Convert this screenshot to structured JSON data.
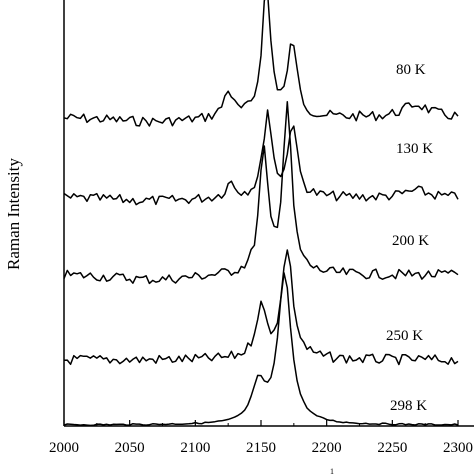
{
  "chart_data": {
    "type": "line",
    "title": "",
    "xlabel": "",
    "ylabel": "Raman Intensity",
    "xlim": [
      2000,
      2300
    ],
    "x_ticks": [
      2000,
      2050,
      2100,
      2150,
      2200,
      2250,
      2300
    ],
    "x_tick_labels": [
      "2000",
      "2050",
      "2100",
      "2150",
      "2200",
      "2250",
      "2300"
    ],
    "partial_axis_text": "1",
    "grid": false,
    "legend": "none",
    "y_units": "arbitrary, vertically offset traces",
    "series": [
      {
        "label": "80 K",
        "baseline": 0.0,
        "peaks": [
          {
            "center": 2125,
            "height": 0.2,
            "width": 4
          },
          {
            "center": 2154,
            "height": 0.95,
            "width": 4
          },
          {
            "center": 2174,
            "height": 0.55,
            "width": 4
          },
          {
            "center": 2268,
            "height": 0.1,
            "width": 12
          }
        ]
      },
      {
        "label": "130 K",
        "baseline": 0.0,
        "peaks": [
          {
            "center": 2127,
            "height": 0.15,
            "width": 4
          },
          {
            "center": 2155,
            "height": 0.85,
            "width": 4
          },
          {
            "center": 2174,
            "height": 0.75,
            "width": 4
          },
          {
            "center": 2268,
            "height": 0.07,
            "width": 12
          }
        ]
      },
      {
        "label": "200 K",
        "baseline": 0.0,
        "peaks": [
          {
            "center": 2152,
            "height": 0.75,
            "width": 4
          },
          {
            "center": 2170,
            "height": 1.05,
            "width": 4
          }
        ]
      },
      {
        "label": "250 K",
        "baseline": 0.0,
        "peaks": [
          {
            "center": 2150,
            "height": 0.45,
            "width": 5
          },
          {
            "center": 2170,
            "height": 1.0,
            "width": 5
          }
        ]
      },
      {
        "label": "298 K",
        "baseline": 0.0,
        "peaks": [
          {
            "center": 2148,
            "height": 0.25,
            "width": 6
          },
          {
            "center": 2168,
            "height": 1.0,
            "width": 6
          }
        ]
      }
    ]
  }
}
